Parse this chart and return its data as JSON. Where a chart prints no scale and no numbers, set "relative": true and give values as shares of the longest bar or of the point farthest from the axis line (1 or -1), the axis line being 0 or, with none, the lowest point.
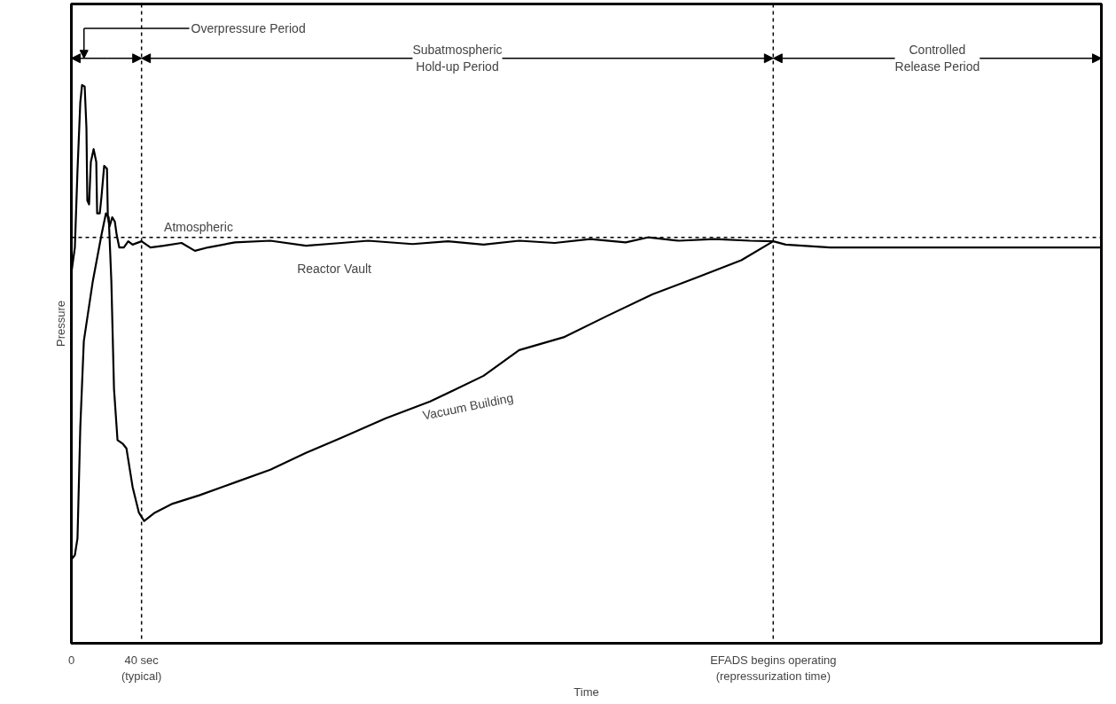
{
  "chart_data": {
    "type": "line",
    "relative": true,
    "xlabel": "Time",
    "ylabel": "Pressure",
    "xlim": [
      0,
      587
    ],
    "xticks": [
      0,
      {
        "value": 40,
        "label": "40 sec\n(typical)"
      },
      {
        "value": 400,
        "label": "EFADS begins operating\n(repressurization time)"
      }
    ],
    "grid": false,
    "marker": "none",
    "line_style": "solid",
    "series": [
      {
        "name": "Reactor Vault",
        "color": "#000000",
        "x": [
          0,
          2.0,
          3.5,
          5.1,
          6.1,
          7.6,
          8.6,
          9.1,
          10.1,
          11.1,
          12.7,
          14.2,
          14.7,
          16.2,
          17.2,
          18.7,
          20.3,
          20.8,
          21.8,
          23.3,
          24.8,
          25.8,
          27.3,
          29.9,
          32.4,
          34.9,
          40,
          45.1,
          52.7,
          62.8,
          70.4,
          77.9,
          93.2,
          113.4,
          133.7,
          153.9,
          169.1,
          194.4,
          214.7,
          234.9,
          255.2,
          275.4,
          295.7,
          315.9,
          328.6,
          346.3,
          366.6,
          386.8,
          400,
          407.1,
          432.4,
          457.7,
          508.3,
          586.8
        ],
        "values": [
          0.663,
          0.709,
          0.847,
          0.969,
          1.0,
          0.997,
          0.923,
          0.793,
          0.786,
          0.862,
          0.885,
          0.862,
          0.77,
          0.77,
          0.801,
          0.855,
          0.85,
          0.763,
          0.747,
          0.763,
          0.755,
          0.732,
          0.709,
          0.709,
          0.72,
          0.714,
          0.72,
          0.709,
          0.712,
          0.717,
          0.703,
          0.709,
          0.718,
          0.721,
          0.712,
          0.717,
          0.721,
          0.715,
          0.72,
          0.714,
          0.721,
          0.717,
          0.724,
          0.718,
          0.727,
          0.721,
          0.724,
          0.721,
          0.72,
          0.714,
          0.709,
          0.709,
          0.709,
          0.709
        ]
      },
      {
        "name": "Vacuum Building",
        "color": "#000000",
        "x": [
          0,
          2.0,
          3.5,
          5.1,
          7.1,
          12.2,
          17.2,
          19.7,
          21.3,
          22.8,
          24.3,
          26.3,
          29.4,
          31.4,
          34.9,
          38.5,
          41.5,
          47.6,
          57.7,
          72.9,
          93.2,
          113.4,
          133.7,
          153.9,
          179.2,
          204.5,
          234.9,
          255.2,
          280.5,
          305.8,
          331.1,
          356.4,
          381.8,
          400
        ],
        "values": [
          0.15,
          0.158,
          0.188,
          0.387,
          0.541,
          0.648,
          0.732,
          0.77,
          0.763,
          0.648,
          0.456,
          0.364,
          0.357,
          0.349,
          0.28,
          0.234,
          0.219,
          0.234,
          0.25,
          0.265,
          0.288,
          0.311,
          0.341,
          0.368,
          0.403,
          0.433,
          0.479,
          0.525,
          0.548,
          0.587,
          0.625,
          0.655,
          0.686,
          0.72
        ]
      }
    ],
    "ref_lines": [
      {
        "axis": "y",
        "value": 0.727,
        "label": "Atmospheric",
        "line_style": "dashed"
      },
      {
        "axis": "x",
        "value": 40,
        "line_style": "dashed"
      },
      {
        "axis": "x",
        "value": 400,
        "line_style": "dashed"
      }
    ],
    "annotations": [
      "Overpressure Period",
      "Subatmospheric\nHold-up Period",
      "Controlled\nRelease Period"
    ]
  }
}
